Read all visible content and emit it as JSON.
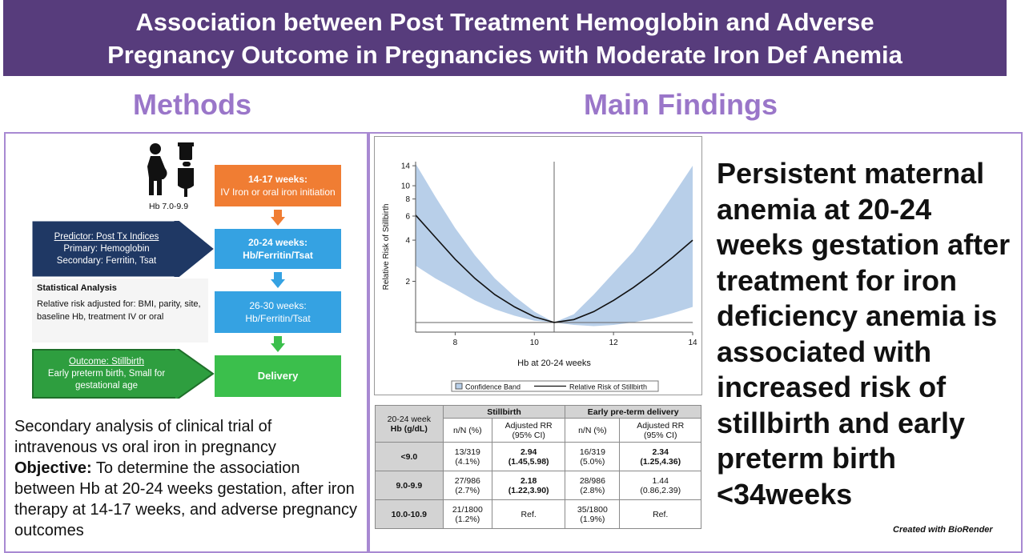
{
  "header": {
    "line1": "Association between Post Treatment Hemoglobin and Adverse",
    "line2": "Pregnancy Outcome in Pregnancies with Moderate Iron Def Anemia"
  },
  "methods": {
    "heading": "Methods",
    "hb_label": "Hb 7.0-9.9",
    "flow": [
      {
        "title": "14-17 weeks:",
        "sub": "IV Iron or oral iron initiation"
      },
      {
        "title": "20-24 weeks:",
        "sub": "Hb/Ferritin/Tsat"
      },
      {
        "title": "26-30 weeks:",
        "sub": "Hb/Ferritin/Tsat"
      },
      {
        "title": "Delivery",
        "sub": ""
      }
    ],
    "predictor": {
      "title": "Predictor: Post Tx Indices",
      "line1": "Primary: Hemoglobin",
      "line2": "Secondary: Ferritin, Tsat"
    },
    "outcome": {
      "title": "Outcome: Stillbirth",
      "line1": "Early preterm birth, Small for",
      "line2": "gestational age"
    },
    "stats": {
      "title": "Statistical Analysis",
      "body": "Relative risk adjusted for: BMI, parity, site, baseline Hb, treatment IV or oral"
    },
    "text1": "Secondary analysis of clinical trial of intravenous vs oral iron in pregnancy",
    "objective_label": "Objective:",
    "objective_text": " To determine the association between Hb at 20-24 weeks gestation, after iron therapy at 14-17 weeks, and adverse pregnancy outcomes"
  },
  "findings": {
    "heading": "Main Findings",
    "statement": "Persistent maternal anemia at 20-24 weeks gestation after treatment for iron deficiency anemia is associated with increased risk of stillbirth and early preterm birth <34weeks"
  },
  "chart_data": {
    "type": "line",
    "xlabel": "Hb at 20-24 weeks",
    "ylabel": "Relative Risk of Stillbirth",
    "xlim": [
      7,
      14
    ],
    "ylim_log": [
      0.85,
      15
    ],
    "y_scale": "log",
    "xticks": [
      8,
      10,
      12,
      14
    ],
    "yticks": [
      2,
      4,
      6,
      8,
      10,
      14
    ],
    "reference_x": 10.5,
    "reference_y": 1,
    "series": [
      {
        "name": "Relative Risk of Stillbirth",
        "x": [
          7,
          7.5,
          8,
          8.5,
          9,
          9.5,
          10,
          10.5,
          11,
          11.5,
          12,
          12.5,
          13,
          13.5,
          14
        ],
        "y": [
          6.1,
          4.2,
          2.9,
          2.1,
          1.6,
          1.3,
          1.1,
          1.0,
          1.05,
          1.2,
          1.45,
          1.8,
          2.3,
          3.0,
          4.0
        ]
      },
      {
        "name": "Confidence Band",
        "x": [
          7,
          7.5,
          8,
          8.5,
          9,
          9.5,
          10,
          10.5,
          11,
          11.5,
          12,
          12.5,
          13,
          13.5,
          14
        ],
        "lower": [
          2.6,
          2.1,
          1.75,
          1.45,
          1.25,
          1.12,
          1.03,
          1.0,
          0.96,
          0.94,
          0.96,
          1.0,
          1.07,
          1.17,
          1.3
        ],
        "upper": [
          14.5,
          8.3,
          4.9,
          3.1,
          2.1,
          1.55,
          1.2,
          1.0,
          1.15,
          1.6,
          2.3,
          3.3,
          5.2,
          8.5,
          14
        ]
      }
    ],
    "legend": [
      "Confidence Band",
      "Relative Risk of Stillbirth"
    ],
    "colors": {
      "band": "#b8cfe9",
      "line": "#111111"
    }
  },
  "table": {
    "col1": [
      "20-24 week",
      "Hb (g/dL)"
    ],
    "group1": "Stillbirth",
    "group2": "Early pre-term delivery",
    "sub": [
      "n/N (%)",
      "Adjusted RR",
      "(95% CI)"
    ],
    "rows": [
      {
        "hb": "<9.0",
        "sb_n": "13/319",
        "sb_p": "(4.1%)",
        "sb_rr": "2.94",
        "sb_ci": "(1.45,5.98)",
        "pt_n": "16/319",
        "pt_p": "(5.0%)",
        "pt_rr": "2.34",
        "pt_ci": "(1.25,4.36)"
      },
      {
        "hb": "9.0-9.9",
        "sb_n": "27/986",
        "sb_p": "(2.7%)",
        "sb_rr": "2.18",
        "sb_ci": "(1.22,3.90)",
        "pt_n": "28/986",
        "pt_p": "(2.8%)",
        "pt_rr": "1.44",
        "pt_ci": "(0.86,2.39)"
      },
      {
        "hb": "10.0-10.9",
        "sb_n": "21/1800",
        "sb_p": "(1.2%)",
        "sb_rr": "Ref.",
        "sb_ci": "",
        "pt_n": "35/1800",
        "pt_p": "(1.9%)",
        "pt_rr": "Ref.",
        "pt_ci": ""
      }
    ]
  },
  "credit": "Created with BioRender",
  "colors": {
    "header": "#573c7c",
    "accent": "#9a76c9",
    "orange": "#f07d33",
    "blue": "#35a2e2",
    "green": "#3bbf4c",
    "navy": "#1f3864"
  }
}
